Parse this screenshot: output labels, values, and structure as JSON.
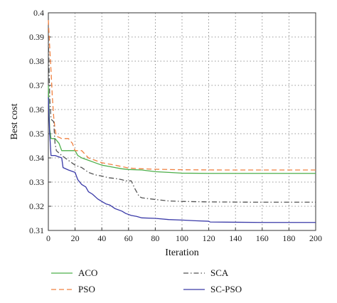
{
  "chart_data": {
    "type": "line",
    "title": "",
    "xlabel": "Iteration",
    "ylabel": "Best cost",
    "xlim": [
      0,
      200
    ],
    "ylim": [
      0.31,
      0.4
    ],
    "xticks": [
      0,
      20,
      40,
      60,
      80,
      100,
      120,
      140,
      160,
      180,
      200
    ],
    "yticks": [
      0.31,
      0.32,
      0.33,
      0.34,
      0.35,
      0.36,
      0.37,
      0.38,
      0.39,
      0.4
    ],
    "xtick_labels": [
      "0",
      "20",
      "40",
      "60",
      "80",
      "100",
      "120",
      "140",
      "160",
      "180",
      "200"
    ],
    "ytick_labels": [
      "0.31",
      "0.32",
      "0.33",
      "0.34",
      "0.35",
      "0.36",
      "0.37",
      "0.38",
      "0.39",
      "0.4"
    ],
    "grid": true,
    "legend_position": "below",
    "series": [
      {
        "name": "ACO",
        "color": "#4daf4a",
        "dash": "solid",
        "points": [
          [
            0,
            0.37
          ],
          [
            1,
            0.352
          ],
          [
            2,
            0.348
          ],
          [
            5,
            0.348
          ],
          [
            8,
            0.346
          ],
          [
            10,
            0.343
          ],
          [
            20,
            0.343
          ],
          [
            22,
            0.341
          ],
          [
            25,
            0.34
          ],
          [
            30,
            0.339
          ],
          [
            35,
            0.338
          ],
          [
            40,
            0.337
          ],
          [
            45,
            0.3365
          ],
          [
            50,
            0.336
          ],
          [
            55,
            0.3355
          ],
          [
            60,
            0.3352
          ],
          [
            70,
            0.335
          ],
          [
            80,
            0.3343
          ],
          [
            90,
            0.334
          ],
          [
            100,
            0.3337
          ],
          [
            120,
            0.3336
          ],
          [
            150,
            0.3336
          ],
          [
            200,
            0.3336
          ]
        ]
      },
      {
        "name": "PSO",
        "color": "#f08040",
        "dash": "dashed",
        "points": [
          [
            0,
            0.397
          ],
          [
            1,
            0.386
          ],
          [
            2,
            0.376
          ],
          [
            3,
            0.365
          ],
          [
            4,
            0.357
          ],
          [
            5,
            0.352
          ],
          [
            6,
            0.349
          ],
          [
            10,
            0.348
          ],
          [
            15,
            0.348
          ],
          [
            18,
            0.346
          ],
          [
            20,
            0.343
          ],
          [
            25,
            0.343
          ],
          [
            30,
            0.34
          ],
          [
            35,
            0.339
          ],
          [
            40,
            0.338
          ],
          [
            50,
            0.337
          ],
          [
            60,
            0.3358
          ],
          [
            70,
            0.3355
          ],
          [
            80,
            0.3353
          ],
          [
            100,
            0.3351
          ],
          [
            130,
            0.335
          ],
          [
            200,
            0.335
          ]
        ]
      },
      {
        "name": "SCA",
        "color": "#555555",
        "dash": "dashdot",
        "points": [
          [
            0,
            0.39
          ],
          [
            1,
            0.365
          ],
          [
            2,
            0.356
          ],
          [
            4,
            0.355
          ],
          [
            5,
            0.346
          ],
          [
            6,
            0.343
          ],
          [
            10,
            0.341
          ],
          [
            15,
            0.339
          ],
          [
            20,
            0.337
          ],
          [
            25,
            0.336
          ],
          [
            30,
            0.334
          ],
          [
            35,
            0.333
          ],
          [
            40,
            0.3325
          ],
          [
            45,
            0.3318
          ],
          [
            50,
            0.3315
          ],
          [
            55,
            0.331
          ],
          [
            58,
            0.3305
          ],
          [
            62,
            0.3305
          ],
          [
            65,
            0.327
          ],
          [
            68,
            0.324
          ],
          [
            70,
            0.3235
          ],
          [
            80,
            0.3228
          ],
          [
            90,
            0.3222
          ],
          [
            100,
            0.322
          ],
          [
            120,
            0.3218
          ],
          [
            150,
            0.3217
          ],
          [
            200,
            0.3217
          ]
        ]
      },
      {
        "name": "SC-PSO",
        "color": "#3a3aa8",
        "dash": "solid",
        "points": [
          [
            0,
            0.365
          ],
          [
            1,
            0.35
          ],
          [
            2,
            0.341
          ],
          [
            5,
            0.341
          ],
          [
            10,
            0.34
          ],
          [
            11,
            0.336
          ],
          [
            15,
            0.335
          ],
          [
            20,
            0.334
          ],
          [
            22,
            0.331
          ],
          [
            25,
            0.329
          ],
          [
            28,
            0.328
          ],
          [
            30,
            0.326
          ],
          [
            33,
            0.325
          ],
          [
            37,
            0.323
          ],
          [
            40,
            0.322
          ],
          [
            43,
            0.321
          ],
          [
            46,
            0.3205
          ],
          [
            50,
            0.319
          ],
          [
            55,
            0.318
          ],
          [
            58,
            0.317
          ],
          [
            62,
            0.3162
          ],
          [
            66,
            0.3158
          ],
          [
            70,
            0.3152
          ],
          [
            80,
            0.315
          ],
          [
            90,
            0.3145
          ],
          [
            100,
            0.3143
          ],
          [
            110,
            0.314
          ],
          [
            120,
            0.3138
          ],
          [
            121,
            0.3135
          ],
          [
            140,
            0.3134
          ],
          [
            160,
            0.3133
          ],
          [
            180,
            0.3133
          ],
          [
            200,
            0.3133
          ]
        ]
      }
    ]
  }
}
